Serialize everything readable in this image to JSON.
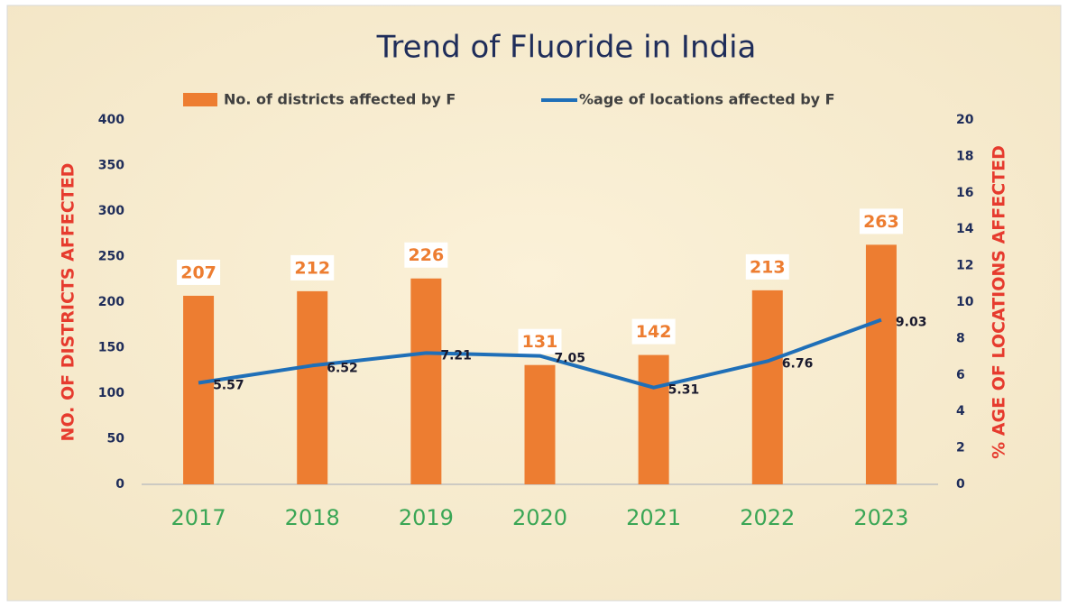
{
  "chart_data": {
    "type": "bar_line",
    "title": "Trend of Fluoride in India",
    "categories": [
      "2017",
      "2018",
      "2019",
      "2020",
      "2021",
      "2022",
      "2023"
    ],
    "series": [
      {
        "name": "No. of districts affected by F",
        "type": "bar",
        "color": "#ed7d31",
        "values": [
          207,
          212,
          226,
          131,
          142,
          213,
          263
        ]
      },
      {
        "name": "%age of locations affected by F",
        "type": "line",
        "axis": "y2",
        "color": "#1f6fb8",
        "values": [
          5.57,
          6.52,
          7.21,
          7.05,
          5.31,
          6.76,
          9.03
        ]
      }
    ],
    "ylabel": "NO. OF DISTRICTS AFFECTED",
    "y2label": "% AGE OF LOCATIONS AFFECTED",
    "ylim": [
      0,
      400
    ],
    "yticks": [
      0,
      50,
      100,
      150,
      200,
      250,
      300,
      350,
      400
    ],
    "y2lim": [
      0,
      20
    ],
    "y2ticks": [
      0,
      2,
      4,
      6,
      8,
      10,
      12,
      14,
      16,
      18,
      20
    ],
    "grid": false,
    "legend": "top"
  }
}
